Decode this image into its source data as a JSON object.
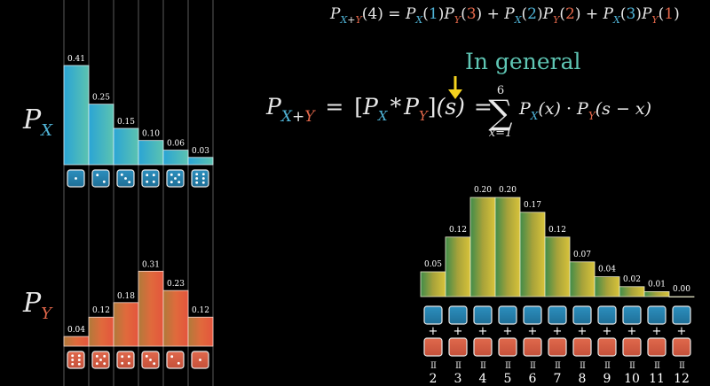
{
  "colors": {
    "blue": "#4fb3d6",
    "red": "#e3674a",
    "teal": "#5fc6b4",
    "yellow": "#f4d21e",
    "grid": "#5a5a5a"
  },
  "formula_top": {
    "P": "P",
    "sub_x": "X",
    "plus": "+",
    "sub_y": "Y",
    "arg": "(4)",
    "equals": "=",
    "terms": [
      {
        "x": "1",
        "y": "3"
      },
      {
        "x": "2",
        "y": "2"
      },
      {
        "x": "3",
        "y": "1"
      }
    ]
  },
  "in_general": "In general",
  "formula_general": {
    "lbracket": "[",
    "star": "*",
    "rbracket": "]",
    "s": "(s)",
    "equals": "=",
    "sum_top": "6",
    "sum_bottom": "x=1",
    "sigma": "∑",
    "px": "(x)",
    "dot": "·",
    "py": "(s − x)"
  },
  "labels": {
    "px_P": "P",
    "px_sub": "X",
    "py_P": "P",
    "py_sub": "Y"
  },
  "chart_data": [
    {
      "type": "bar",
      "categories": [
        "1",
        "2",
        "3",
        "4",
        "5",
        "6"
      ],
      "values": [
        0.41,
        0.25,
        0.15,
        0.1,
        0.06,
        0.03
      ],
      "value_labels": [
        "0.41",
        "0.25",
        "0.15",
        "0.10",
        "0.06",
        "0.03"
      ],
      "dice_faces": [
        1,
        2,
        3,
        4,
        5,
        6
      ]
    },
    {
      "type": "bar",
      "categories": [
        "6",
        "5",
        "4",
        "3",
        "2",
        "1"
      ],
      "values": [
        0.04,
        0.12,
        0.18,
        0.31,
        0.23,
        0.12
      ],
      "value_labels": [
        "0.04",
        "0.12",
        "0.18",
        "0.31",
        "0.23",
        "0.12"
      ],
      "dice_faces": [
        6,
        5,
        4,
        3,
        2,
        1
      ]
    },
    {
      "type": "bar",
      "categories": [
        "2",
        "3",
        "4",
        "5",
        "6",
        "7",
        "8",
        "9",
        "10",
        "11",
        "12"
      ],
      "values": [
        0.05,
        0.12,
        0.2,
        0.2,
        0.17,
        0.12,
        0.07,
        0.04,
        0.02,
        0.01,
        0.0
      ],
      "value_labels": [
        "0.05",
        "0.12",
        "0.20",
        "0.20",
        "0.17",
        "0.12",
        "0.07",
        "0.04",
        "0.02",
        "0.01",
        "0.00"
      ],
      "plus_sign": "+",
      "equals_sign": "II"
    }
  ]
}
